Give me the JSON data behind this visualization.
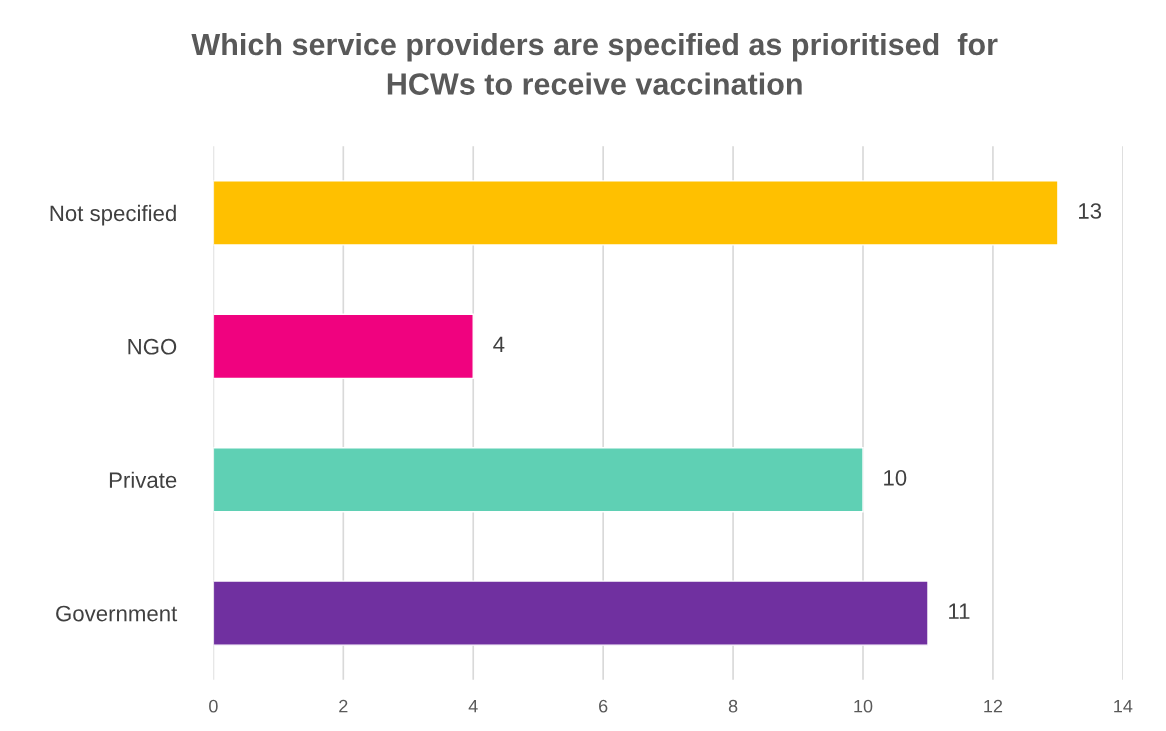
{
  "chart_data": {
    "type": "bar",
    "orientation": "horizontal",
    "title": "Which service providers are specified as prioritised  for\nHCWs to receive vaccination",
    "categories": [
      "Not specified",
      "NGO",
      "Private",
      "Government"
    ],
    "values": [
      13,
      4,
      10,
      11
    ],
    "colors": [
      "#ffc000",
      "#f0027f",
      "#5fd0b4",
      "#7030a0"
    ],
    "xlim": [
      0,
      14
    ],
    "xticks": [
      0,
      2,
      4,
      6,
      8,
      10,
      12,
      14
    ],
    "grid": "x",
    "data_labels": true,
    "legend": false
  }
}
